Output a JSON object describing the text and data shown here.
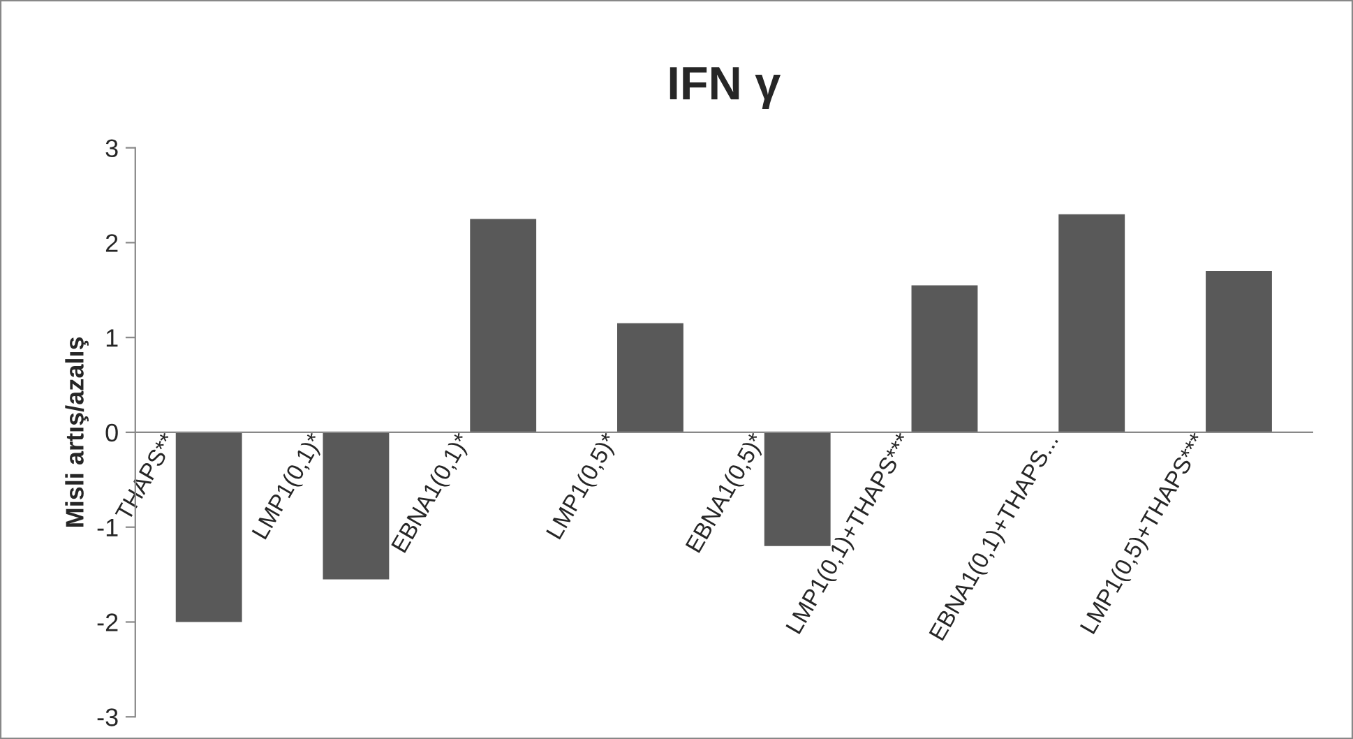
{
  "chart_data": {
    "type": "bar",
    "title": "IFN γ",
    "ylabel": "Misli artış/azalış",
    "categories": [
      "THAPS**",
      "LMP1(0,1)*",
      "EBNA1(0,1)*",
      "LMP1(0,5)*",
      "EBNA1(0,5)*",
      "LMP1(0,1)+THAPS***",
      "EBNA1(0,1)+THAPS...",
      "LMP1(0,5)+THAPS***"
    ],
    "values": [
      -2.0,
      -1.55,
      2.25,
      1.15,
      -1.2,
      1.55,
      2.3,
      1.7
    ],
    "color": "#595959",
    "ylim": [
      -3,
      3
    ],
    "yticks": [
      -3,
      -2,
      -1,
      0,
      1,
      2,
      3
    ],
    "grid": false,
    "legend": false
  }
}
